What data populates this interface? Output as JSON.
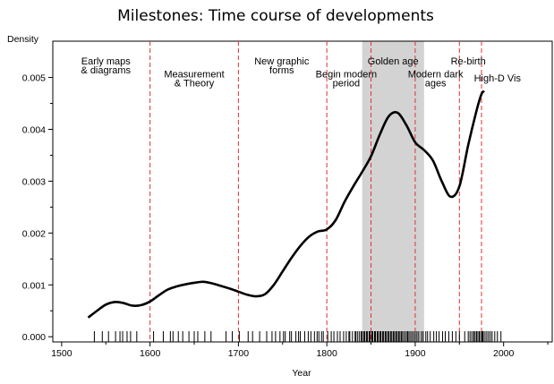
{
  "chart_data": {
    "type": "line",
    "title": "Milestones: Time course of developments",
    "xlabel": "Year",
    "ylabel": "Density",
    "xlim": [
      1490,
      2055
    ],
    "ylim": [
      -0.0001,
      0.0057
    ],
    "x_ticks": [
      1500,
      1600,
      1700,
      1800,
      1900,
      2000
    ],
    "x_tick_labels": [
      "1500",
      "1600",
      "1700",
      "1800",
      "1900",
      "2000"
    ],
    "y_ticks": [
      0.0,
      0.001,
      0.002,
      0.003,
      0.004,
      0.005
    ],
    "y_tick_labels": [
      "0.000",
      "0.001",
      "0.002",
      "0.003",
      "0.004",
      "0.005"
    ],
    "shaded_band": [
      1840,
      1910
    ],
    "colors": {
      "curve": "#000000",
      "period_line": "#e03030",
      "band": "#d3d3d3"
    },
    "series": [
      {
        "x": [
          1530,
          1540,
          1550,
          1560,
          1570,
          1580,
          1590,
          1600,
          1610,
          1620,
          1630,
          1640,
          1650,
          1660,
          1670,
          1680,
          1690,
          1700,
          1710,
          1720,
          1730,
          1740,
          1750,
          1760,
          1770,
          1780,
          1790,
          1800,
          1810,
          1820,
          1830,
          1840,
          1850,
          1860,
          1870,
          1880,
          1890,
          1900,
          1910,
          1920,
          1930,
          1940,
          1950,
          1960,
          1970,
          1975,
          1978
        ],
        "y": [
          0.00037,
          0.0005,
          0.00062,
          0.00067,
          0.00065,
          0.0006,
          0.00061,
          0.00068,
          0.0008,
          0.00091,
          0.00097,
          0.00101,
          0.00104,
          0.00106,
          0.00103,
          0.00098,
          0.00093,
          0.00087,
          0.00081,
          0.00078,
          0.00082,
          0.001,
          0.00126,
          0.00152,
          0.00175,
          0.00193,
          0.00203,
          0.00207,
          0.00225,
          0.0026,
          0.0029,
          0.00318,
          0.00348,
          0.0039,
          0.00425,
          0.00432,
          0.00408,
          0.00375,
          0.0036,
          0.0034,
          0.003,
          0.0027,
          0.0029,
          0.0037,
          0.0044,
          0.00468,
          0.00474
        ]
      }
    ],
    "milestone_years": [
      1537,
      1546,
      1553,
      1561,
      1566,
      1569,
      1574,
      1578,
      1585,
      1604,
      1615,
      1623,
      1626,
      1632,
      1637,
      1644,
      1650,
      1654,
      1662,
      1669,
      1686,
      1693,
      1701,
      1711,
      1716,
      1724,
      1732,
      1738,
      1742,
      1747,
      1751,
      1753,
      1758,
      1760,
      1765,
      1768,
      1770,
      1775,
      1779,
      1782,
      1786,
      1789,
      1791,
      1794,
      1796,
      1801,
      1805,
      1808,
      1812,
      1815,
      1819,
      1822,
      1825,
      1826,
      1829,
      1832,
      1833,
      1835,
      1837,
      1839,
      1840,
      1842,
      1843,
      1845,
      1846,
      1848,
      1849,
      1851,
      1852,
      1854,
      1855,
      1857,
      1858,
      1860,
      1861,
      1863,
      1864,
      1866,
      1867,
      1869,
      1870,
      1872,
      1873,
      1875,
      1876,
      1878,
      1879,
      1881,
      1882,
      1884,
      1885,
      1887,
      1889,
      1891,
      1892,
      1894,
      1896,
      1898,
      1900,
      1902,
      1904,
      1907,
      1909,
      1912,
      1914,
      1917,
      1921,
      1924,
      1927,
      1931,
      1934,
      1938,
      1942,
      1946,
      1950,
      1956,
      1960,
      1962,
      1964,
      1966,
      1967,
      1969,
      1970,
      1972,
      1973,
      1975,
      1976,
      1977,
      1979,
      1981,
      1983,
      1985,
      1987,
      1990,
      1993,
      1997
    ],
    "periods": [
      {
        "year": 1600,
        "lines": [
          "Early maps",
          "& diagrams"
        ],
        "label_year": 1550,
        "label_y": 0.00525
      },
      {
        "year": 1700,
        "lines": [
          "Measurement",
          "& Theory"
        ],
        "label_year": 1650,
        "label_y": 0.005
      },
      {
        "year": 1800,
        "lines": [
          "New graphic",
          "forms"
        ],
        "label_year": 1749,
        "label_y": 0.00525
      },
      {
        "year": 1850,
        "lines": [
          "Begin modern",
          "period"
        ],
        "label_year": 1822,
        "label_y": 0.005
      },
      {
        "year": 1900,
        "lines": [
          "Golden age"
        ],
        "label_year": 1875,
        "label_y": 0.00525
      },
      {
        "year": 1950,
        "lines": [
          "Modern dark",
          "ages"
        ],
        "label_year": 1923,
        "label_y": 0.005
      },
      {
        "year": 1975,
        "lines": [
          "Re-birth"
        ],
        "label_year": 1960,
        "label_y": 0.00525
      },
      {
        "year": null,
        "lines": [
          "High-D Vis"
        ],
        "label_year": 1993,
        "label_y": 0.00492
      }
    ]
  }
}
